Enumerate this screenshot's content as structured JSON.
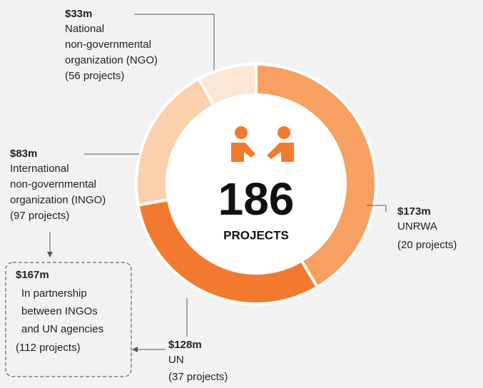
{
  "chart_data": {
    "type": "pie",
    "donut": true,
    "categories": [
      "UNRWA",
      "UN",
      "International non-governmental organization (INGO)",
      "National non-governmental organization (NGO)"
    ],
    "values": [
      173,
      128,
      83,
      33
    ],
    "value_labels": [
      "$173m",
      "$128m",
      "$83m",
      "$33m"
    ],
    "project_labels": [
      "(20 projects)",
      "(37 projects)",
      "(97 projects)",
      "(56 projects)"
    ],
    "colors": [
      "#f7a062",
      "#f27a2f",
      "#fbd0ac",
      "#fde6d4"
    ],
    "center_total": "186",
    "center_label": "PROJECTS",
    "partnership": {
      "value_label": "$167m",
      "text": "In partnership between INGOs and UN agencies",
      "projects": "(112 projects)"
    }
  }
}
